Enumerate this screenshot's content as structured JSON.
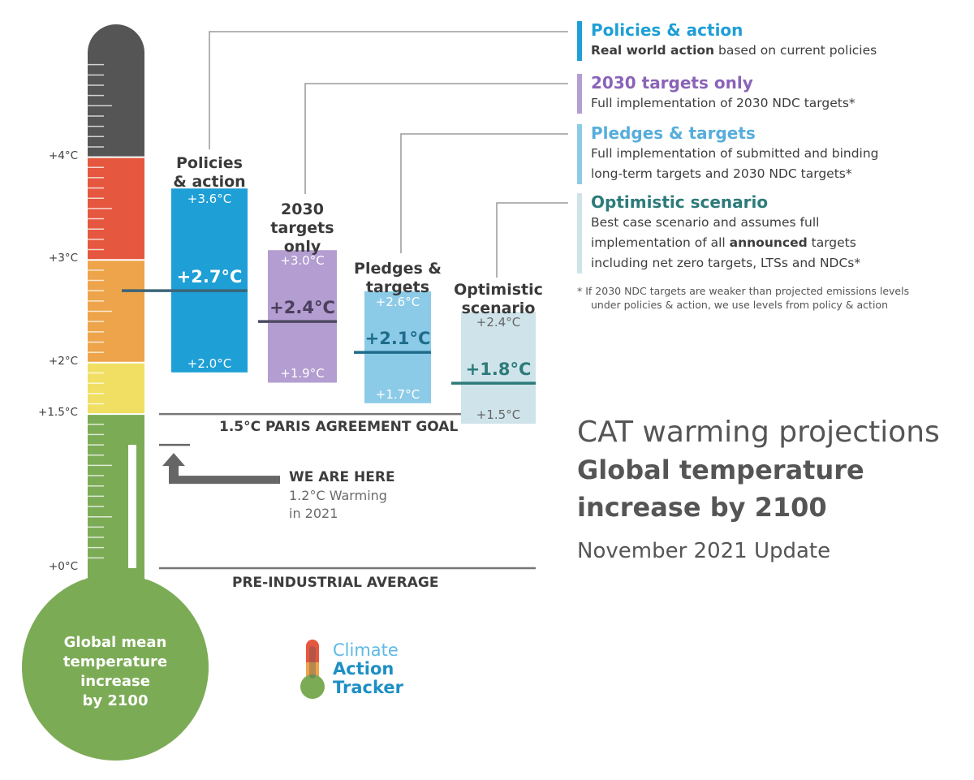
{
  "chart_data": {
    "type": "range-bar",
    "unit": "°C",
    "title": "CAT warming projections",
    "subtitle_lines": [
      "Global temperature",
      "increase by 2100"
    ],
    "update": "November 2021 Update",
    "thermometer_label_lines": [
      "Global mean",
      "temperature",
      "increase",
      "by 2100"
    ],
    "axis": {
      "ticks": [
        {
          "value": 0,
          "label": "+0°C"
        },
        {
          "value": 1.5,
          "label": "+1.5°C"
        },
        {
          "value": 2,
          "label": "+2°C"
        },
        {
          "value": 3,
          "label": "+3°C"
        },
        {
          "value": 4,
          "label": "+4°C"
        }
      ],
      "ylim": [
        0,
        5.0
      ]
    },
    "color_bands": [
      {
        "from": 0,
        "to": 1.5,
        "color": "#7cab56"
      },
      {
        "from": 1.5,
        "to": 2.0,
        "color": "#f0df62"
      },
      {
        "from": 2.0,
        "to": 3.0,
        "color": "#eda44a"
      },
      {
        "from": 3.0,
        "to": 4.0,
        "color": "#e5573f"
      },
      {
        "from": 4.0,
        "to": 5.0,
        "color": "#555555"
      }
    ],
    "scenarios": [
      {
        "title_lines": [
          "Policies",
          "& action"
        ],
        "high": 3.6,
        "central": 2.7,
        "low": 2.0,
        "high_label": "+3.6°C",
        "central_label": "+2.7°C",
        "low_label": "+2.0°C",
        "color": "#1e9fd6",
        "line_color": "#3b6478",
        "central_text_color": "#ffffff"
      },
      {
        "title_lines": [
          "2030",
          "targets",
          "only"
        ],
        "high": 3.0,
        "central": 2.4,
        "low": 1.9,
        "high_label": "+3.0°C",
        "central_label": "+2.4°C",
        "low_label": "+1.9°C",
        "color": "#b39dd1",
        "line_color": "#4f4a63",
        "central_text_color": "#4a3f5c"
      },
      {
        "title_lines": [
          "Pledges &",
          "targets"
        ],
        "high": 2.6,
        "central": 2.1,
        "low": 1.7,
        "high_label": "+2.6°C",
        "central_label": "+2.1°C",
        "low_label": "+1.7°C",
        "color": "#8ccbe8",
        "line_color": "#1e6c8a",
        "central_text_color": "#1e6c8a"
      },
      {
        "title_lines": [
          "Optimistic",
          "scenario"
        ],
        "high": 2.4,
        "central": 1.8,
        "low": 1.5,
        "high_label": "+2.4°C",
        "central_label": "+1.8°C",
        "low_label": "+1.5°C",
        "color": "#cfe4ea",
        "line_color": "#2c7b7a",
        "central_text_color": "#2c7b7a",
        "value_text_color": "#666666"
      }
    ],
    "legend": [
      {
        "title": "Policies & action",
        "color": "#1e9fd6",
        "bar_color": "#1e9fd6",
        "desc_lines": [
          [
            {
              "t": "Real world action",
              "b": true
            },
            {
              "t": " based on current policies"
            }
          ]
        ]
      },
      {
        "title": "2030 targets only",
        "color": "#8a63b8",
        "bar_color": "#b39dd1",
        "desc_lines": [
          [
            {
              "t": "Full implementation of 2030 NDC targets*"
            }
          ]
        ]
      },
      {
        "title": "Pledges & targets",
        "color": "#57addc",
        "bar_color": "#8ccbe8",
        "desc_lines": [
          [
            {
              "t": "Full implementation of submitted and binding"
            }
          ],
          [
            {
              "t": "long-term targets and 2030 NDC targets*"
            }
          ]
        ]
      },
      {
        "title": "Optimistic scenario",
        "color": "#2c7b7a",
        "bar_color": "#cfe4ea",
        "desc_lines": [
          [
            {
              "t": "Best case scenario and assumes full"
            }
          ],
          [
            {
              "t": "implementation of all "
            },
            {
              "t": "announced",
              "b": true
            },
            {
              "t": " targets"
            }
          ],
          [
            {
              "t": "including net zero targets, LTSs and NDCs*"
            }
          ]
        ]
      }
    ],
    "footnote_lines": [
      "* If 2030 NDC targets are weaker than projected emissions levels",
      "under policies & action, we use levels from policy & action"
    ],
    "reference_lines": [
      {
        "value": 1.5,
        "label": "1.5°C PARIS AGREEMENT GOAL"
      },
      {
        "value": 0,
        "label": "PRE-INDUSTRIAL AVERAGE"
      }
    ],
    "current": {
      "value": 1.2,
      "label": "WE ARE HERE",
      "sub_lines": [
        "1.2°C Warming",
        "in 2021"
      ]
    },
    "logo_lines": [
      "Climate",
      "Action",
      "Tracker"
    ]
  }
}
